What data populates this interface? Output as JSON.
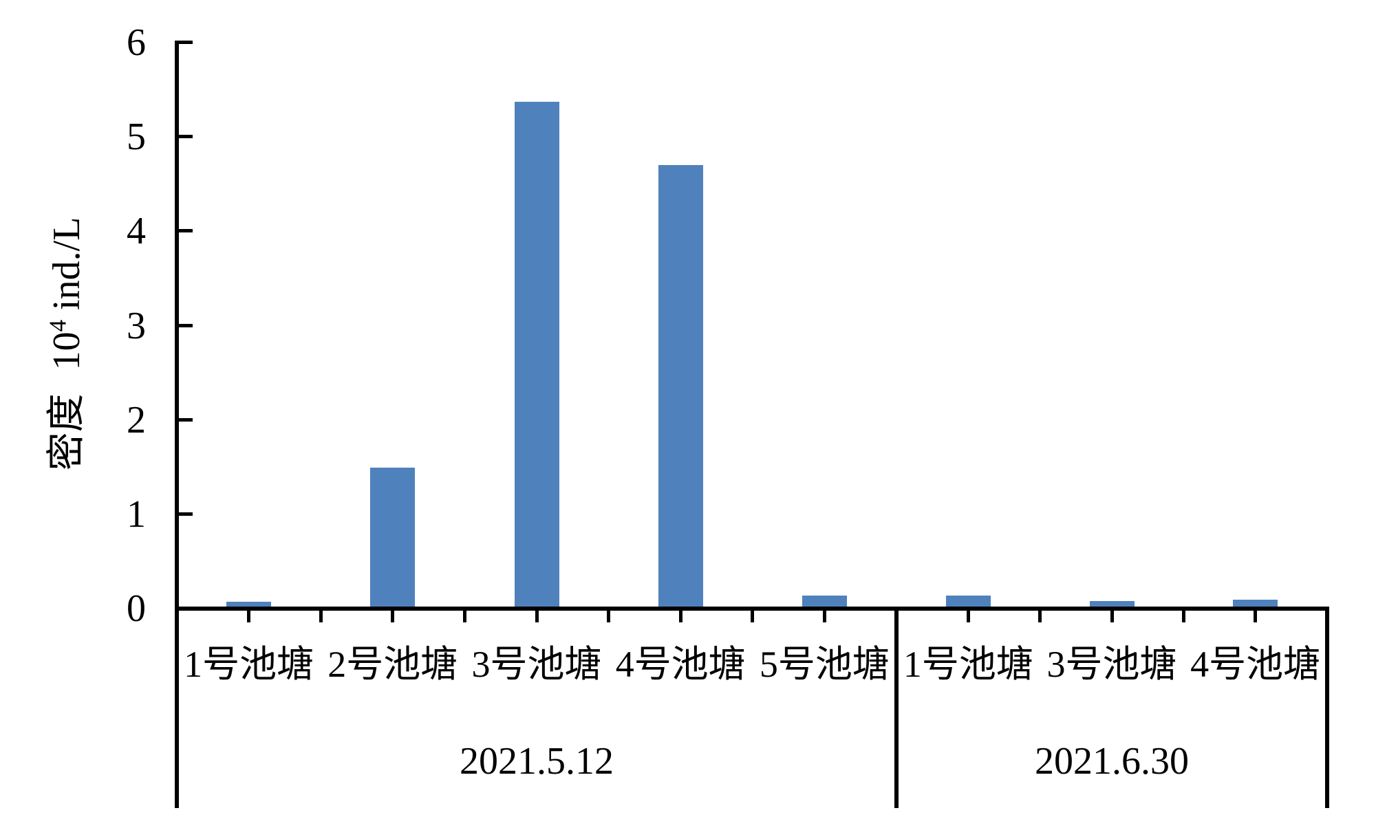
{
  "chart_data": {
    "type": "bar",
    "title": "",
    "ylabel": {
      "cn": "密度",
      "unit_base": "10",
      "unit_exp": "4",
      "unit_rest": " ind./L",
      "full": "密度 10⁴ ind./L"
    },
    "yticks": [
      0,
      1,
      2,
      3,
      4,
      5,
      6
    ],
    "ylim": [
      0,
      6
    ],
    "grid": "off",
    "legend": "none",
    "bar_color": "#4f81bd",
    "axis_color": "#000000",
    "groups": [
      {
        "label": "2021.5.12",
        "categories": [
          "1号池塘",
          "2号池塘",
          "3号池塘",
          "4号池塘",
          "5号池塘"
        ],
        "values": [
          0.05,
          1.47,
          5.35,
          4.68,
          0.12
        ]
      },
      {
        "label": "2021.6.30",
        "categories": [
          "1号池塘",
          "3号池塘",
          "4号池塘"
        ],
        "values": [
          0.12,
          0.06,
          0.07
        ]
      }
    ]
  }
}
